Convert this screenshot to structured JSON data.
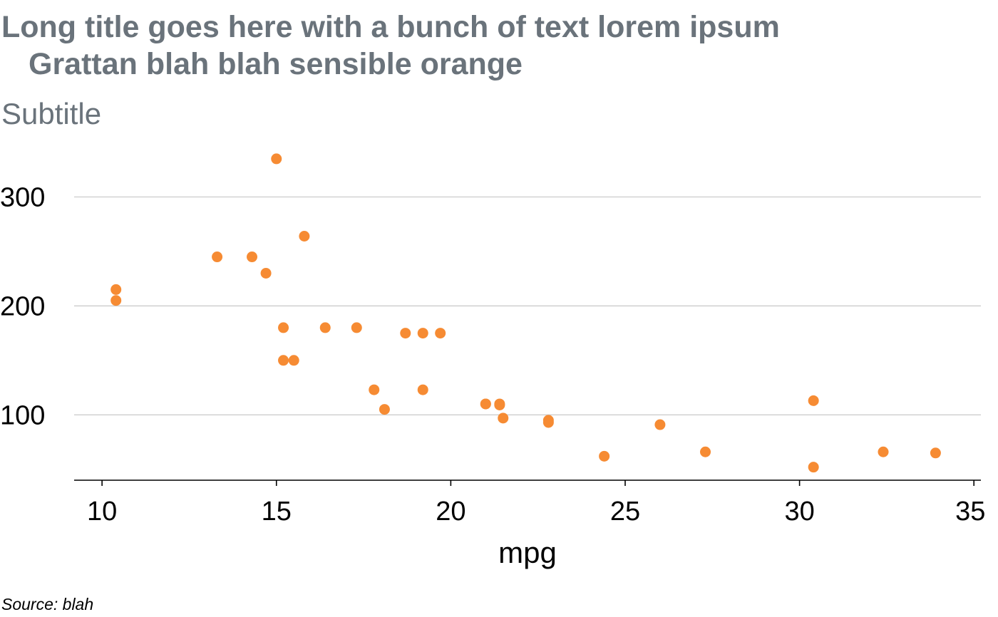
{
  "title": {
    "line1": "Long title goes here with a bunch of text lorem ipsum",
    "line2": "Grattan blah blah sensible orange"
  },
  "subtitle": "Subtitle",
  "source": "Source: blah",
  "chart_data": {
    "type": "scatter",
    "xlabel": "mpg",
    "ylabel": "",
    "xlim": [
      9.2,
      35.2
    ],
    "ylim": [
      40,
      350
    ],
    "x_ticks": [
      10,
      15,
      20,
      25,
      30,
      35
    ],
    "y_ticks": [
      100,
      200,
      300
    ],
    "grid": "horizontal",
    "point_color": "#f68b33",
    "gridline_color": "#c8c8c8",
    "series": [
      {
        "points": [
          {
            "x": 21.0,
            "y": 110
          },
          {
            "x": 21.0,
            "y": 110
          },
          {
            "x": 22.8,
            "y": 93
          },
          {
            "x": 21.4,
            "y": 110
          },
          {
            "x": 18.7,
            "y": 175
          },
          {
            "x": 18.1,
            "y": 105
          },
          {
            "x": 14.3,
            "y": 245
          },
          {
            "x": 24.4,
            "y": 62
          },
          {
            "x": 22.8,
            "y": 95
          },
          {
            "x": 19.2,
            "y": 123
          },
          {
            "x": 17.8,
            "y": 123
          },
          {
            "x": 16.4,
            "y": 180
          },
          {
            "x": 17.3,
            "y": 180
          },
          {
            "x": 15.2,
            "y": 180
          },
          {
            "x": 10.4,
            "y": 205
          },
          {
            "x": 10.4,
            "y": 215
          },
          {
            "x": 14.7,
            "y": 230
          },
          {
            "x": 32.4,
            "y": 66
          },
          {
            "x": 30.4,
            "y": 52
          },
          {
            "x": 33.9,
            "y": 65
          },
          {
            "x": 21.5,
            "y": 97
          },
          {
            "x": 15.5,
            "y": 150
          },
          {
            "x": 15.2,
            "y": 150
          },
          {
            "x": 13.3,
            "y": 245
          },
          {
            "x": 19.2,
            "y": 175
          },
          {
            "x": 27.3,
            "y": 66
          },
          {
            "x": 26.0,
            "y": 91
          },
          {
            "x": 30.4,
            "y": 113
          },
          {
            "x": 15.8,
            "y": 264
          },
          {
            "x": 19.7,
            "y": 175
          },
          {
            "x": 15.0,
            "y": 335
          },
          {
            "x": 21.4,
            "y": 109
          }
        ]
      }
    ]
  }
}
